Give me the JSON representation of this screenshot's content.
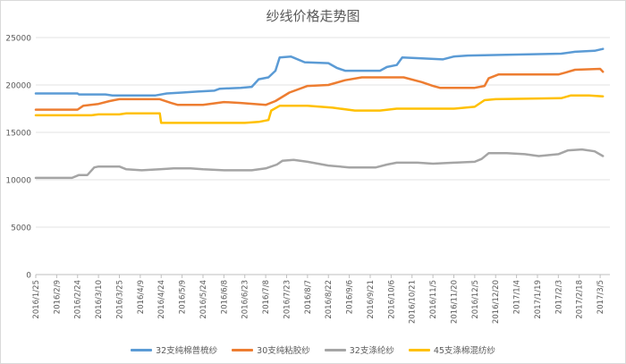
{
  "chart_data": {
    "type": "line",
    "title": "纱线价格走势图",
    "xlabel": "",
    "ylabel": "",
    "ylim": [
      0,
      25000
    ],
    "yticks": [
      0,
      5000,
      10000,
      15000,
      20000,
      25000
    ],
    "grid": "horizontal",
    "legend": "bottom",
    "x_range": [
      "2016/1/25",
      "2017/3/12"
    ],
    "x_ticks": [
      "2016/1/25",
      "2016/2/9",
      "2016/2/24",
      "2016/3/10",
      "2016/3/25",
      "2016/4/9",
      "2016/4/24",
      "2016/5/9",
      "2016/5/24",
      "2016/6/8",
      "2016/6/23",
      "2016/7/8",
      "2016/7/23",
      "2016/8/7",
      "2016/8/22",
      "2016/9/6",
      "2016/9/21",
      "2016/10/6",
      "2016/10/21",
      "2016/11/5",
      "2016/11/20",
      "2016/12/5",
      "2016/12/20",
      "2017/1/4",
      "2017/1/19",
      "2017/2/3",
      "2017/2/18",
      "2017/3/5"
    ],
    "series": [
      {
        "name": "32支纯棉普梳纱",
        "color": "#5b9bd5",
        "points": [
          [
            "2016/1/25",
            19100
          ],
          [
            "2016/2/24",
            19100
          ],
          [
            "2016/2/25",
            19000
          ],
          [
            "2016/3/15",
            19000
          ],
          [
            "2016/3/20",
            18900
          ],
          [
            "2016/4/20",
            18900
          ],
          [
            "2016/4/28",
            19100
          ],
          [
            "2016/5/9",
            19200
          ],
          [
            "2016/5/20",
            19300
          ],
          [
            "2016/6/1",
            19400
          ],
          [
            "2016/6/5",
            19600
          ],
          [
            "2016/6/20",
            19700
          ],
          [
            "2016/6/28",
            19800
          ],
          [
            "2016/7/3",
            20600
          ],
          [
            "2016/7/10",
            20800
          ],
          [
            "2016/7/15",
            21500
          ],
          [
            "2016/7/18",
            22900
          ],
          [
            "2016/7/26",
            23000
          ],
          [
            "2016/8/5",
            22400
          ],
          [
            "2016/8/22",
            22300
          ],
          [
            "2016/8/28",
            21800
          ],
          [
            "2016/9/3",
            21500
          ],
          [
            "2016/9/28",
            21500
          ],
          [
            "2016/10/3",
            21900
          ],
          [
            "2016/10/10",
            22100
          ],
          [
            "2016/10/14",
            22900
          ],
          [
            "2016/10/28",
            22800
          ],
          [
            "2016/11/12",
            22700
          ],
          [
            "2016/11/20",
            23000
          ],
          [
            "2016/11/30",
            23100
          ],
          [
            "2017/2/5",
            23300
          ],
          [
            "2017/2/15",
            23500
          ],
          [
            "2017/3/1",
            23600
          ],
          [
            "2017/3/7",
            23800
          ]
        ]
      },
      {
        "name": "30支纯粘胶纱",
        "color": "#ed7d31",
        "points": [
          [
            "2016/1/25",
            17400
          ],
          [
            "2016/2/24",
            17400
          ],
          [
            "2016/2/28",
            17800
          ],
          [
            "2016/3/10",
            18000
          ],
          [
            "2016/3/18",
            18300
          ],
          [
            "2016/3/25",
            18500
          ],
          [
            "2016/4/23",
            18500
          ],
          [
            "2016/5/1",
            18100
          ],
          [
            "2016/5/6",
            17900
          ],
          [
            "2016/5/24",
            17900
          ],
          [
            "2016/6/8",
            18200
          ],
          [
            "2016/6/20",
            18100
          ],
          [
            "2016/7/8",
            17900
          ],
          [
            "2016/7/15",
            18300
          ],
          [
            "2016/7/25",
            19200
          ],
          [
            "2016/8/7",
            19900
          ],
          [
            "2016/8/22",
            20000
          ],
          [
            "2016/9/3",
            20500
          ],
          [
            "2016/9/15",
            20800
          ],
          [
            "2016/10/15",
            20800
          ],
          [
            "2016/10/28",
            20300
          ],
          [
            "2016/11/5",
            19900
          ],
          [
            "2016/11/10",
            19700
          ],
          [
            "2016/12/5",
            19700
          ],
          [
            "2016/12/12",
            19900
          ],
          [
            "2016/12/15",
            20700
          ],
          [
            "2016/12/22",
            21100
          ],
          [
            "2017/2/3",
            21100
          ],
          [
            "2017/2/8",
            21300
          ],
          [
            "2017/2/15",
            21600
          ],
          [
            "2017/3/5",
            21700
          ],
          [
            "2017/3/7",
            21400
          ]
        ]
      },
      {
        "name": "32支涤纶纱",
        "color": "#a5a5a5",
        "points": [
          [
            "2016/1/25",
            10200
          ],
          [
            "2016/2/20",
            10200
          ],
          [
            "2016/2/25",
            10500
          ],
          [
            "2016/3/2",
            10500
          ],
          [
            "2016/3/7",
            11300
          ],
          [
            "2016/3/10",
            11400
          ],
          [
            "2016/3/25",
            11400
          ],
          [
            "2016/3/30",
            11100
          ],
          [
            "2016/4/10",
            11000
          ],
          [
            "2016/4/23",
            11100
          ],
          [
            "2016/5/3",
            11200
          ],
          [
            "2016/5/15",
            11200
          ],
          [
            "2016/5/24",
            11100
          ],
          [
            "2016/6/8",
            11000
          ],
          [
            "2016/6/28",
            11000
          ],
          [
            "2016/7/8",
            11200
          ],
          [
            "2016/7/16",
            11600
          ],
          [
            "2016/7/20",
            12000
          ],
          [
            "2016/7/28",
            12100
          ],
          [
            "2016/8/7",
            11900
          ],
          [
            "2016/8/22",
            11500
          ],
          [
            "2016/9/6",
            11300
          ],
          [
            "2016/9/25",
            11300
          ],
          [
            "2016/10/3",
            11600
          ],
          [
            "2016/10/10",
            11800
          ],
          [
            "2016/10/25",
            11800
          ],
          [
            "2016/11/5",
            11700
          ],
          [
            "2016/11/20",
            11800
          ],
          [
            "2016/12/5",
            11900
          ],
          [
            "2016/12/10",
            12200
          ],
          [
            "2016/12/15",
            12800
          ],
          [
            "2016/12/28",
            12800
          ],
          [
            "2017/1/10",
            12700
          ],
          [
            "2017/1/20",
            12500
          ],
          [
            "2017/2/3",
            12700
          ],
          [
            "2017/2/10",
            13100
          ],
          [
            "2017/2/20",
            13200
          ],
          [
            "2017/3/1",
            13000
          ],
          [
            "2017/3/7",
            12500
          ]
        ]
      },
      {
        "name": "45支涤棉混纺纱",
        "color": "#ffc000",
        "points": [
          [
            "2016/1/25",
            16800
          ],
          [
            "2016/3/5",
            16800
          ],
          [
            "2016/3/10",
            16900
          ],
          [
            "2016/3/25",
            16900
          ],
          [
            "2016/3/30",
            17000
          ],
          [
            "2016/4/23",
            17000
          ],
          [
            "2016/4/24",
            16000
          ],
          [
            "2016/6/23",
            16000
          ],
          [
            "2016/7/3",
            16100
          ],
          [
            "2016/7/10",
            16300
          ],
          [
            "2016/7/12",
            17300
          ],
          [
            "2016/7/18",
            17800
          ],
          [
            "2016/8/7",
            17800
          ],
          [
            "2016/8/25",
            17600
          ],
          [
            "2016/9/10",
            17300
          ],
          [
            "2016/9/28",
            17300
          ],
          [
            "2016/10/10",
            17500
          ],
          [
            "2016/10/28",
            17500
          ],
          [
            "2016/11/20",
            17500
          ],
          [
            "2016/12/5",
            17700
          ],
          [
            "2016/12/12",
            18400
          ],
          [
            "2016/12/20",
            18500
          ],
          [
            "2017/2/5",
            18600
          ],
          [
            "2017/2/12",
            18900
          ],
          [
            "2017/2/25",
            18900
          ],
          [
            "2017/3/7",
            18800
          ]
        ]
      }
    ]
  }
}
